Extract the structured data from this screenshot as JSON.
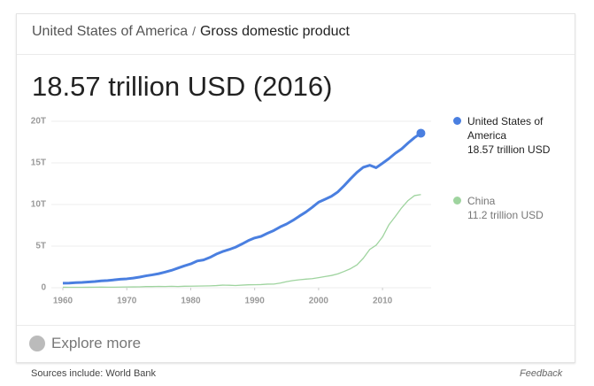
{
  "breadcrumb": {
    "country": "United States of America",
    "separator": "/",
    "indicator": "Gross domestic product"
  },
  "headline": "18.57 trillion USD (2016)",
  "explore": "Explore more",
  "source": "Sources include: World Bank",
  "feedback": "Feedback",
  "chart_data": {
    "type": "line",
    "x": [
      1960,
      1961,
      1962,
      1963,
      1964,
      1965,
      1966,
      1967,
      1968,
      1969,
      1970,
      1971,
      1972,
      1973,
      1974,
      1975,
      1976,
      1977,
      1978,
      1979,
      1980,
      1981,
      1982,
      1983,
      1984,
      1985,
      1986,
      1987,
      1988,
      1989,
      1990,
      1991,
      1992,
      1993,
      1994,
      1995,
      1996,
      1997,
      1998,
      1999,
      2000,
      2001,
      2002,
      2003,
      2004,
      2005,
      2006,
      2007,
      2008,
      2009,
      2010,
      2011,
      2012,
      2013,
      2014,
      2015,
      2016
    ],
    "series": [
      {
        "name": "United States of America",
        "color": "#4a7fe0",
        "last_label": "18.57 trillion USD",
        "values": [
          0.54,
          0.56,
          0.61,
          0.64,
          0.69,
          0.74,
          0.82,
          0.86,
          0.94,
          1.02,
          1.07,
          1.16,
          1.28,
          1.43,
          1.55,
          1.69,
          1.88,
          2.09,
          2.36,
          2.63,
          2.86,
          3.21,
          3.34,
          3.64,
          4.04,
          4.35,
          4.59,
          4.87,
          5.25,
          5.66,
          5.98,
          6.17,
          6.54,
          6.88,
          7.31,
          7.66,
          8.1,
          8.61,
          9.09,
          9.66,
          10.28,
          10.62,
          10.98,
          11.51,
          12.27,
          13.09,
          13.86,
          14.48,
          14.72,
          14.42,
          14.96,
          15.52,
          16.16,
          16.69,
          17.39,
          18.04,
          18.57
        ]
      },
      {
        "name": "China",
        "color": "#9fd49f",
        "last_label": "11.2 trillion USD",
        "values": [
          0.06,
          0.05,
          0.05,
          0.05,
          0.06,
          0.07,
          0.08,
          0.07,
          0.07,
          0.08,
          0.09,
          0.1,
          0.11,
          0.14,
          0.14,
          0.16,
          0.15,
          0.17,
          0.15,
          0.18,
          0.19,
          0.2,
          0.21,
          0.23,
          0.26,
          0.31,
          0.3,
          0.27,
          0.31,
          0.35,
          0.36,
          0.38,
          0.43,
          0.44,
          0.56,
          0.73,
          0.86,
          0.96,
          1.03,
          1.09,
          1.21,
          1.34,
          1.47,
          1.66,
          1.96,
          2.29,
          2.75,
          3.55,
          4.6,
          5.11,
          6.1,
          7.57,
          8.56,
          9.61,
          10.48,
          11.07,
          11.2
        ]
      }
    ],
    "xlim": [
      1956.4,
      2017.6
    ],
    "xticks": [
      1960,
      1970,
      1980,
      1990,
      2000,
      2010
    ],
    "ylim": [
      0,
      20
    ],
    "yticks": [
      0,
      {
        "value": 5,
        "label": "5T"
      },
      {
        "value": 10,
        "label": "10T"
      },
      {
        "value": 15,
        "label": "15T"
      },
      {
        "value": 20,
        "label": "20T"
      }
    ],
    "grid": true
  }
}
